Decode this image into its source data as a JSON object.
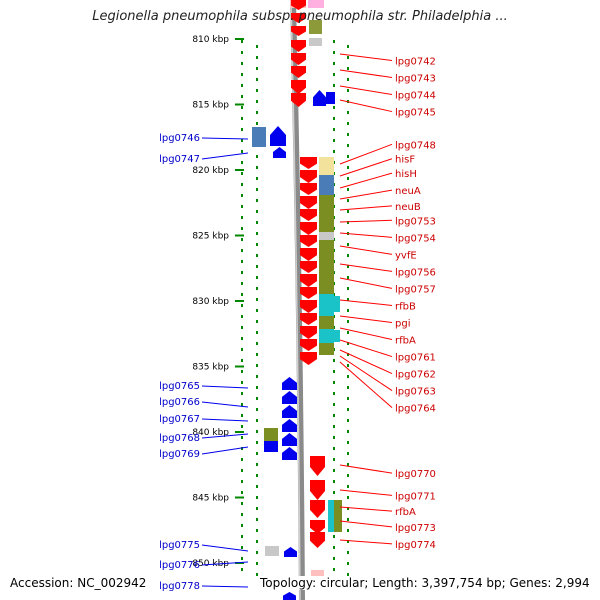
{
  "header": {
    "title": "Legionella pneumophila subsp. pneumophila str. Philadelphia ..."
  },
  "footer": {
    "accession": "Accession: NC_002942",
    "topology": "Topology: circular; Length: 3,397,754 bp; Genes: 2,994"
  },
  "map": {
    "unit": "kbp",
    "range_kbp": [
      807,
      851.5
    ],
    "ticks_kbp": [
      810,
      815,
      820,
      825,
      830,
      835,
      840,
      845,
      850
    ],
    "tick_labels": [
      "810 kbp",
      "815 kbp",
      "820 kbp",
      "825 kbp",
      "830 kbp",
      "835 kbp",
      "840 kbp",
      "845 kbp",
      "850 kbp"
    ],
    "colors": {
      "forward_gene": "#ff0000",
      "reverse_gene": "#0000ee",
      "forward_label": "#cc0000",
      "reverse_label": "#0000cc",
      "backbone": "#8a8a8a",
      "tick": "#008800"
    },
    "forward_labels": [
      {
        "name": "lpg0742",
        "kbp": 810.8
      },
      {
        "name": "lpg0743",
        "kbp": 812.1
      },
      {
        "name": "lpg0744",
        "kbp": 813.4
      },
      {
        "name": "lpg0745",
        "kbp": 814.7
      },
      {
        "name": "lpg0748",
        "kbp": 817.2
      },
      {
        "name": "hisF",
        "kbp": 818.3
      },
      {
        "name": "hisH",
        "kbp": 819.4
      },
      {
        "name": "neuA",
        "kbp": 820.7
      },
      {
        "name": "neuB",
        "kbp": 821.9
      },
      {
        "name": "lpg0753",
        "kbp": 823.0
      },
      {
        "name": "lpg0754",
        "kbp": 824.3
      },
      {
        "name": "yvfE",
        "kbp": 825.6
      },
      {
        "name": "lpg0756",
        "kbp": 826.9
      },
      {
        "name": "lpg0757",
        "kbp": 828.2
      },
      {
        "name": "rfbB",
        "kbp": 829.5
      },
      {
        "name": "pgi",
        "kbp": 830.8
      },
      {
        "name": "rfbA",
        "kbp": 832.1
      },
      {
        "name": "lpg0761",
        "kbp": 833.4
      },
      {
        "name": "lpg0762",
        "kbp": 834.7
      },
      {
        "name": "lpg0763",
        "kbp": 836.0
      },
      {
        "name": "lpg0764",
        "kbp": 837.3
      },
      {
        "name": "lpg0770",
        "kbp": 842.3
      },
      {
        "name": "lpg0771",
        "kbp": 844.0
      },
      {
        "name": "rfbA",
        "kbp": 845.2
      },
      {
        "name": "lpg0773",
        "kbp": 846.4
      },
      {
        "name": "lpg0774",
        "kbp": 847.7
      }
    ],
    "reverse_labels": [
      {
        "name": "lpg0746",
        "kbp": 817.7
      },
      {
        "name": "lpg0747",
        "kbp": 819.3
      },
      {
        "name": "lpg0765",
        "kbp": 836.4
      },
      {
        "name": "lpg0766",
        "kbp": 837.7
      },
      {
        "name": "lpg0767",
        "kbp": 839.0
      },
      {
        "name": "lpg0768",
        "kbp": 840.4
      },
      {
        "name": "lpg0769",
        "kbp": 841.7
      },
      {
        "name": "lpg0775",
        "kbp": 848.9
      },
      {
        "name": "lpg0776",
        "kbp": 850.3
      },
      {
        "name": "lpg0778",
        "kbp": 851.5
      }
    ]
  }
}
